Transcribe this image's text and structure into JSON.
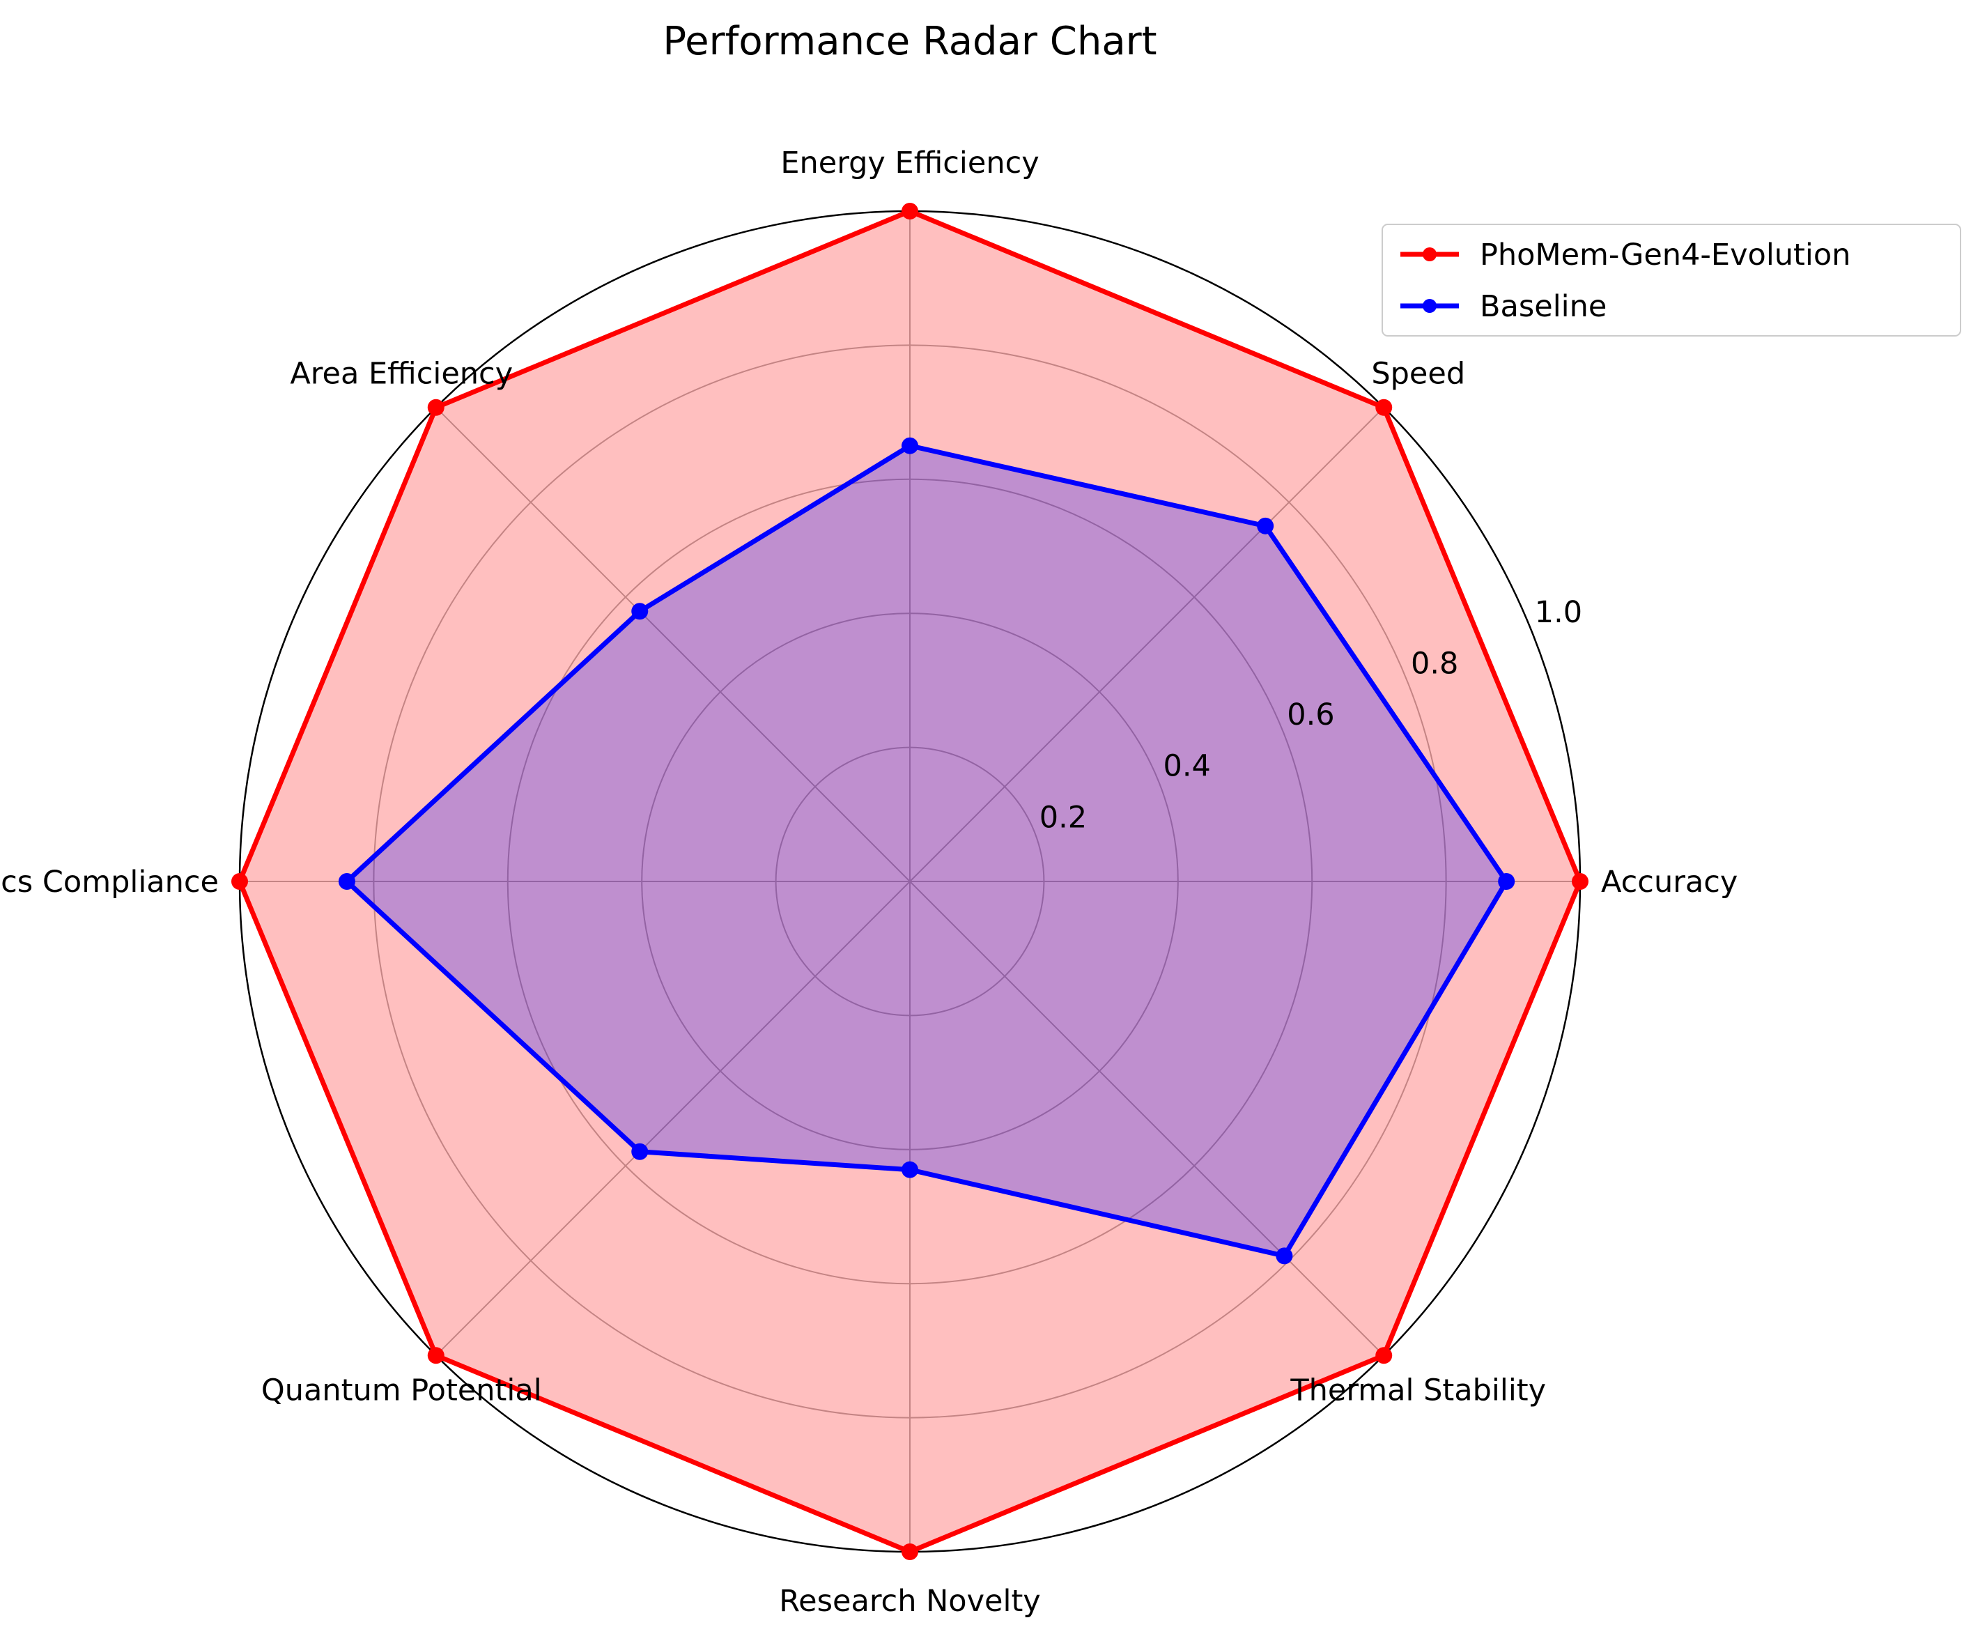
{
  "chart_data": {
    "type": "radar",
    "title": "Performance Radar Chart",
    "categories": [
      "Accuracy",
      "Speed",
      "Energy Efficiency",
      "Area Efficiency",
      "Physics Compliance",
      "Quantum Potential",
      "Research Novelty",
      "Thermal Stability"
    ],
    "rlim": [
      0,
      1.0
    ],
    "rticks": [
      0.2,
      0.4,
      0.6,
      0.8,
      1.0
    ],
    "rtick_labels": [
      "0.2",
      "0.4",
      "0.6",
      "0.8",
      "1.0"
    ],
    "grid": true,
    "legend_position": "top-right",
    "series": [
      {
        "name": "PhoMem-Gen4-Evolution",
        "color": "#ff0000",
        "fill": "#ff0000",
        "values": [
          1.0,
          1.0,
          1.0,
          1.0,
          1.0,
          1.0,
          1.0,
          1.0
        ]
      },
      {
        "name": "Baseline",
        "color": "#0000ff",
        "fill": "#0000ff",
        "values": [
          0.89,
          0.75,
          0.65,
          0.57,
          0.84,
          0.57,
          0.43,
          0.79
        ]
      }
    ]
  }
}
